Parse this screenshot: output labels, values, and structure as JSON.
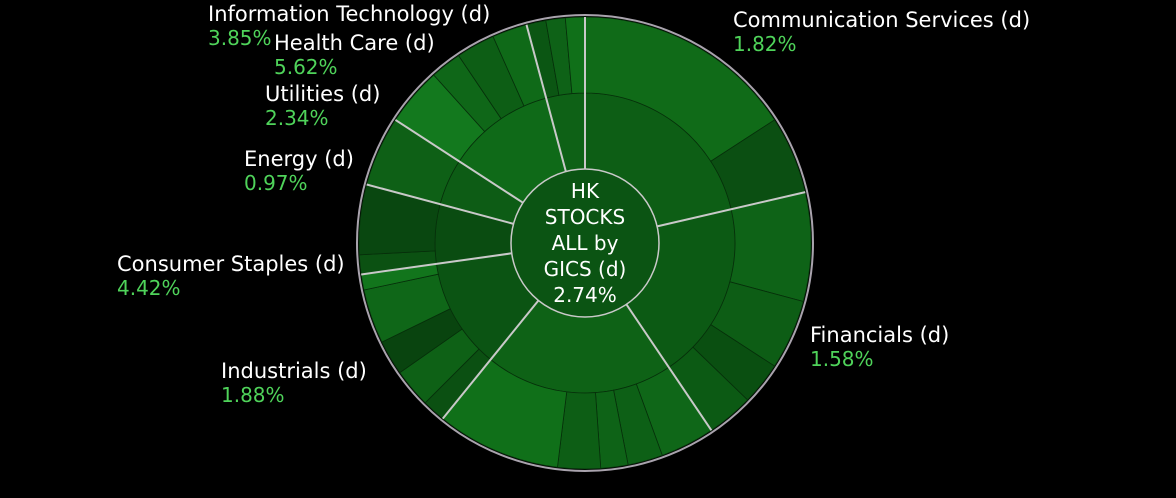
{
  "chart_data": {
    "type": "sunburst",
    "title": "HK STOCKS ALL by GICS (d)",
    "center": {
      "lines": [
        "HK",
        "STOCKS",
        "ALL by",
        "GICS (d)"
      ],
      "change": "2.74%"
    },
    "sectors": [
      {
        "key": "communication_services",
        "label": "Communication Services (d)",
        "change": "1.82%"
      },
      {
        "key": "financials",
        "label": "Financials (d)",
        "change": "1.58%"
      },
      {
        "key": "industrials",
        "label": "Industrials (d)",
        "change": "1.88%"
      },
      {
        "key": "consumer_staples",
        "label": "Consumer Staples (d)",
        "change": "4.42%"
      },
      {
        "key": "energy",
        "label": "Energy (d)",
        "change": "0.97%"
      },
      {
        "key": "utilities",
        "label": "Utilities (d)",
        "change": "2.34%"
      },
      {
        "key": "health_care",
        "label": "Health Care (d)",
        "change": "5.62%"
      },
      {
        "key": "information_technology",
        "label": "Information Technology (d)",
        "change": "3.85%"
      }
    ]
  }
}
